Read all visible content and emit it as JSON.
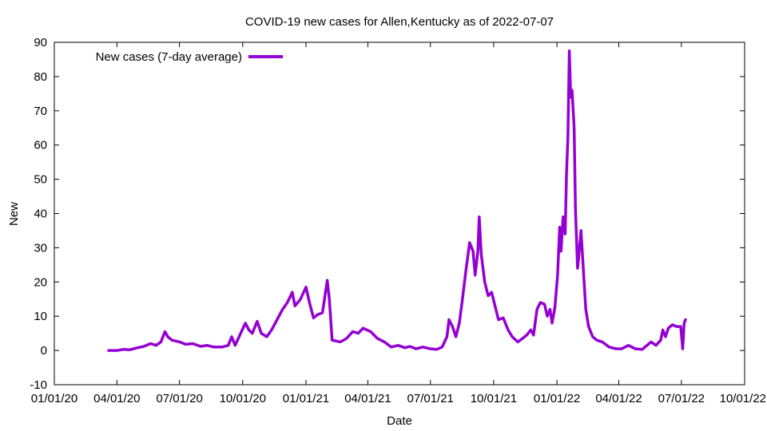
{
  "chart_data": {
    "type": "line",
    "title": "COVID-19 new cases for Allen,Kentucky as of 2022-07-07",
    "xlabel": "Date",
    "ylabel": "New",
    "xlim": [
      "2020-01-01",
      "2022-10-01"
    ],
    "ylim": [
      -10,
      90
    ],
    "y_ticks": [
      -10,
      0,
      10,
      20,
      30,
      40,
      50,
      60,
      70,
      80,
      90
    ],
    "x_ticks": [
      {
        "date": "2020-01-01",
        "label": "01/01/20"
      },
      {
        "date": "2020-04-01",
        "label": "04/01/20"
      },
      {
        "date": "2020-07-01",
        "label": "07/01/20"
      },
      {
        "date": "2020-10-01",
        "label": "10/01/20"
      },
      {
        "date": "2021-01-01",
        "label": "01/01/21"
      },
      {
        "date": "2021-04-01",
        "label": "04/01/21"
      },
      {
        "date": "2021-07-01",
        "label": "07/01/21"
      },
      {
        "date": "2021-10-01",
        "label": "10/01/21"
      },
      {
        "date": "2022-01-01",
        "label": "01/01/22"
      },
      {
        "date": "2022-04-01",
        "label": "04/01/22"
      },
      {
        "date": "2022-07-01",
        "label": "07/01/22"
      },
      {
        "date": "2022-10-01",
        "label": "10/01/22"
      }
    ],
    "grid": false,
    "legend_position": "top-left",
    "series": [
      {
        "name": "New cases (7-day average)",
        "color": "#9400d3",
        "points": [
          [
            "2020-03-20",
            0
          ],
          [
            "2020-04-01",
            0
          ],
          [
            "2020-04-10",
            0.3
          ],
          [
            "2020-04-20",
            0.2
          ],
          [
            "2020-05-01",
            0.8
          ],
          [
            "2020-05-10",
            1.2
          ],
          [
            "2020-05-20",
            2.0
          ],
          [
            "2020-05-28",
            1.5
          ],
          [
            "2020-06-04",
            2.5
          ],
          [
            "2020-06-10",
            5.5
          ],
          [
            "2020-06-14",
            4.0
          ],
          [
            "2020-06-20",
            3.0
          ],
          [
            "2020-07-01",
            2.5
          ],
          [
            "2020-07-10",
            1.8
          ],
          [
            "2020-07-20",
            2.0
          ],
          [
            "2020-08-01",
            1.2
          ],
          [
            "2020-08-10",
            1.5
          ],
          [
            "2020-08-20",
            1.0
          ],
          [
            "2020-09-01",
            1.0
          ],
          [
            "2020-09-10",
            1.5
          ],
          [
            "2020-09-15",
            4.0
          ],
          [
            "2020-09-20",
            1.5
          ],
          [
            "2020-09-28",
            5.0
          ],
          [
            "2020-10-05",
            8.0
          ],
          [
            "2020-10-10",
            6.0
          ],
          [
            "2020-10-15",
            5.0
          ],
          [
            "2020-10-22",
            8.5
          ],
          [
            "2020-10-28",
            5.0
          ],
          [
            "2020-11-05",
            4.0
          ],
          [
            "2020-11-12",
            6.0
          ],
          [
            "2020-11-20",
            9.0
          ],
          [
            "2020-11-28",
            12.0
          ],
          [
            "2020-12-05",
            14.0
          ],
          [
            "2020-12-12",
            17.0
          ],
          [
            "2020-12-16",
            13.0
          ],
          [
            "2020-12-24",
            15.0
          ],
          [
            "2021-01-01",
            18.5
          ],
          [
            "2021-01-06",
            14.0
          ],
          [
            "2021-01-12",
            9.5
          ],
          [
            "2021-01-18",
            10.5
          ],
          [
            "2021-01-25",
            11.0
          ],
          [
            "2021-02-01",
            20.5
          ],
          [
            "2021-02-04",
            15.0
          ],
          [
            "2021-02-08",
            3.0
          ],
          [
            "2021-02-20",
            2.5
          ],
          [
            "2021-03-01",
            3.5
          ],
          [
            "2021-03-10",
            5.5
          ],
          [
            "2021-03-18",
            5.0
          ],
          [
            "2021-03-25",
            6.5
          ],
          [
            "2021-04-05",
            5.5
          ],
          [
            "2021-04-15",
            3.5
          ],
          [
            "2021-04-25",
            2.5
          ],
          [
            "2021-05-05",
            1.0
          ],
          [
            "2021-05-15",
            1.5
          ],
          [
            "2021-05-25",
            0.8
          ],
          [
            "2021-06-01",
            1.2
          ],
          [
            "2021-06-10",
            0.5
          ],
          [
            "2021-06-20",
            1.0
          ],
          [
            "2021-07-01",
            0.5
          ],
          [
            "2021-07-10",
            0.3
          ],
          [
            "2021-07-18",
            1.0
          ],
          [
            "2021-07-25",
            4.0
          ],
          [
            "2021-07-28",
            9.0
          ],
          [
            "2021-08-02",
            7.0
          ],
          [
            "2021-08-07",
            4.0
          ],
          [
            "2021-08-12",
            8.0
          ],
          [
            "2021-08-16",
            14.0
          ],
          [
            "2021-08-22",
            24.0
          ],
          [
            "2021-08-27",
            31.5
          ],
          [
            "2021-09-01",
            29.0
          ],
          [
            "2021-09-04",
            22.0
          ],
          [
            "2021-09-08",
            29.0
          ],
          [
            "2021-09-10",
            39.0
          ],
          [
            "2021-09-13",
            28.0
          ],
          [
            "2021-09-18",
            20.0
          ],
          [
            "2021-09-23",
            16.0
          ],
          [
            "2021-09-28",
            17.0
          ],
          [
            "2021-10-03",
            13.0
          ],
          [
            "2021-10-08",
            9.0
          ],
          [
            "2021-10-15",
            9.5
          ],
          [
            "2021-10-22",
            6.0
          ],
          [
            "2021-10-28",
            4.0
          ],
          [
            "2021-11-05",
            2.5
          ],
          [
            "2021-11-12",
            3.5
          ],
          [
            "2021-11-18",
            4.5
          ],
          [
            "2021-11-24",
            6.0
          ],
          [
            "2021-11-28",
            4.5
          ],
          [
            "2021-12-03",
            12.0
          ],
          [
            "2021-12-08",
            14.0
          ],
          [
            "2021-12-14",
            13.5
          ],
          [
            "2021-12-18",
            10.0
          ],
          [
            "2021-12-22",
            12.0
          ],
          [
            "2021-12-25",
            8.0
          ],
          [
            "2021-12-29",
            12.5
          ],
          [
            "2022-01-02",
            22.0
          ],
          [
            "2022-01-05",
            36.0
          ],
          [
            "2022-01-07",
            29.0
          ],
          [
            "2022-01-10",
            39.0
          ],
          [
            "2022-01-13",
            34.0
          ],
          [
            "2022-01-15",
            52.0
          ],
          [
            "2022-01-17",
            62.0
          ],
          [
            "2022-01-19",
            87.5
          ],
          [
            "2022-01-21",
            74.0
          ],
          [
            "2022-01-23",
            76.0
          ],
          [
            "2022-01-26",
            65.0
          ],
          [
            "2022-01-28",
            41.0
          ],
          [
            "2022-01-31",
            24.0
          ],
          [
            "2022-02-02",
            28.0
          ],
          [
            "2022-02-05",
            35.0
          ],
          [
            "2022-02-08",
            25.0
          ],
          [
            "2022-02-12",
            12.0
          ],
          [
            "2022-02-16",
            7.0
          ],
          [
            "2022-02-22",
            4.0
          ],
          [
            "2022-02-28",
            3.0
          ],
          [
            "2022-03-08",
            2.5
          ],
          [
            "2022-03-18",
            1.0
          ],
          [
            "2022-03-28",
            0.5
          ],
          [
            "2022-04-05",
            0.5
          ],
          [
            "2022-04-15",
            1.5
          ],
          [
            "2022-04-25",
            0.5
          ],
          [
            "2022-05-05",
            0.3
          ],
          [
            "2022-05-12",
            1.5
          ],
          [
            "2022-05-18",
            2.5
          ],
          [
            "2022-05-25",
            1.5
          ],
          [
            "2022-06-01",
            3.0
          ],
          [
            "2022-06-04",
            6.0
          ],
          [
            "2022-06-08",
            4.0
          ],
          [
            "2022-06-12",
            6.5
          ],
          [
            "2022-06-18",
            7.5
          ],
          [
            "2022-06-24",
            7.0
          ],
          [
            "2022-06-30",
            7.0
          ],
          [
            "2022-07-03",
            0.5
          ],
          [
            "2022-07-05",
            8.0
          ],
          [
            "2022-07-07",
            9.0
          ]
        ]
      }
    ]
  }
}
